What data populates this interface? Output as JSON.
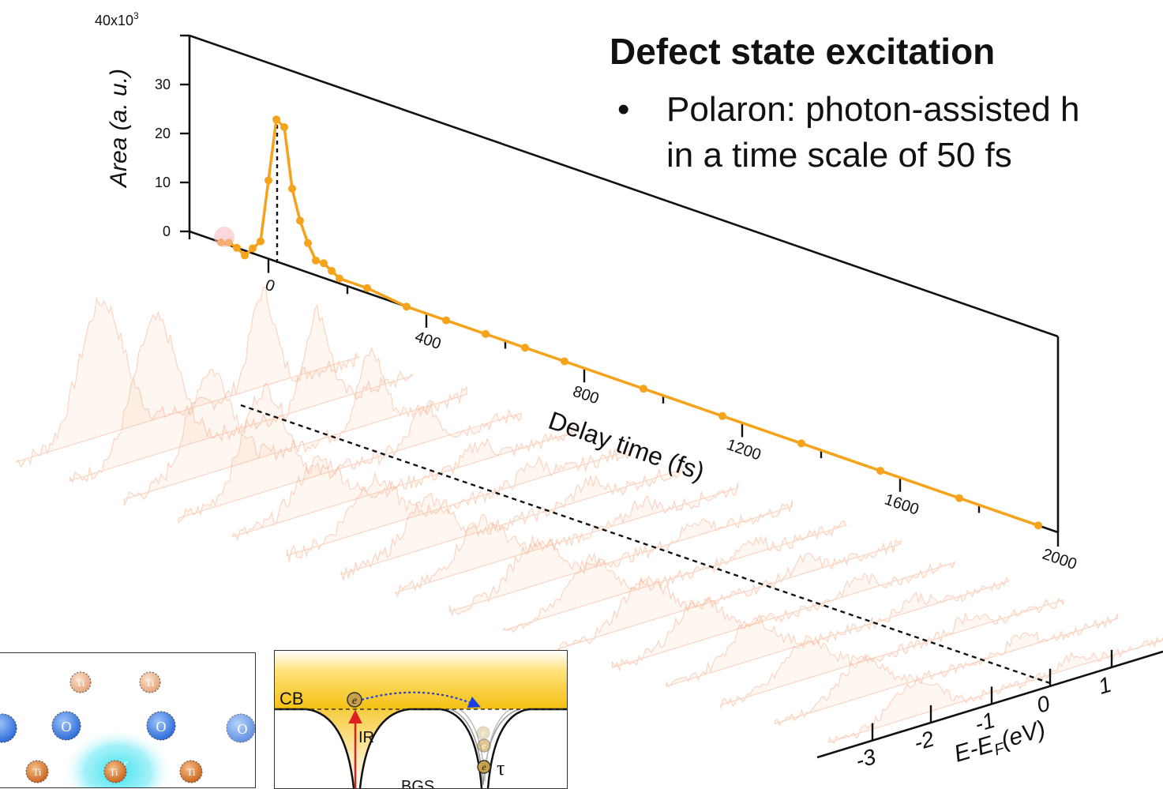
{
  "header": {
    "title": "Defect state excitation",
    "bullet_symbol": "•",
    "bullet_line1": "Polaron: photon-assisted h",
    "bullet_line2": "in a time scale of 50 fs"
  },
  "colors": {
    "series": "#F5A31A",
    "spectra": "#F7A27A",
    "axis": "#111111",
    "ti_atom": "#D9803A",
    "o_atom": "#3A7FE0",
    "cb_band": "#F5C518",
    "polaron_glow": "#33E0F0",
    "ir_arrow": "#E02020",
    "hop_arrow": "#1B3FE0"
  },
  "chart_data": [
    {
      "type": "line",
      "ylabel": "Area (a. u.)",
      "xlabel": "Delay time (fs)",
      "y_multiplier": "40x10",
      "y_multiplier_exp": "3",
      "ylim": [
        0,
        40
      ],
      "xlim": [
        -200,
        2000
      ],
      "y_ticks": [
        "0",
        "10",
        "20",
        "30"
      ],
      "x_ticks": [
        "0",
        "400",
        "800",
        "1200",
        "1600",
        "2000"
      ],
      "grid": false,
      "series": [
        {
          "x": [
            -120,
            -100,
            -80,
            -60,
            -40,
            -20,
            0,
            20,
            40,
            60,
            80,
            100,
            120,
            140,
            160,
            180,
            250,
            350,
            450,
            550,
            650,
            750,
            950,
            1150,
            1350,
            1550,
            1750,
            1950
          ],
          "y": [
            0,
            0.5,
            0,
            -1,
            1,
            3,
            16,
            29,
            28,
            16,
            10,
            6,
            3,
            3,
            2,
            1,
            1,
            0,
            0,
            0,
            0,
            0,
            0,
            0,
            0,
            0,
            0,
            0
          ]
        }
      ]
    },
    {
      "type": "area",
      "xlabel": "E-E",
      "xlabel_sub": "F",
      "xlabel_unit": "(eV)",
      "x_ticks": [
        "-3",
        "-2",
        "-1",
        "0",
        "1"
      ]
    }
  ],
  "panels": {
    "lattice": {
      "ti_label": "Ti",
      "o_label": "O",
      "electron_label": "e"
    },
    "band": {
      "cb_label": "CB",
      "ir_label": "IR",
      "bgs_label": "BGS",
      "tau_label": "τ",
      "electron_label": "e"
    }
  }
}
